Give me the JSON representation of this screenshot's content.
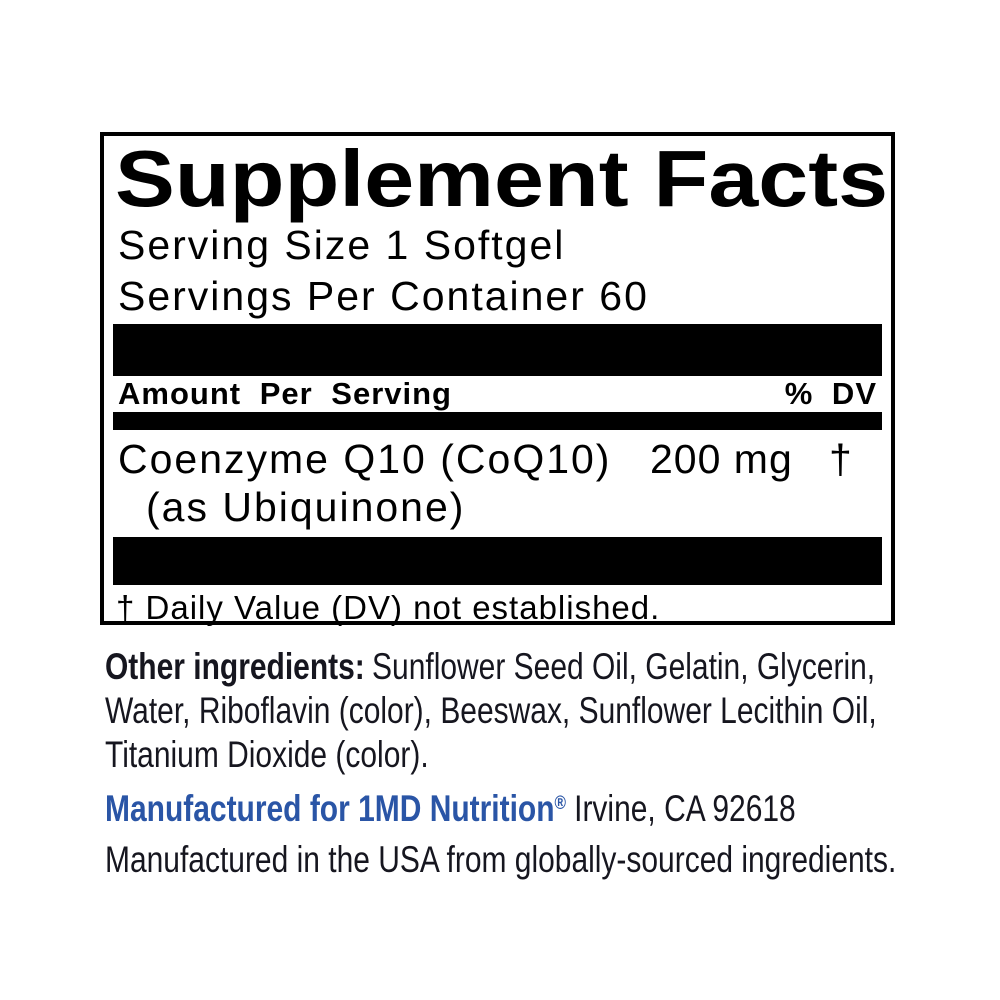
{
  "colors": {
    "accent_blue": "#2a55a6",
    "text_dark": "#16161f",
    "panel_black": "#000000"
  },
  "panel": {
    "title": "Supplement Facts",
    "serving_size": "Serving Size 1 Softgel",
    "servings_per_container": "Servings Per Container 60",
    "columns": {
      "amount": "Amount Per Serving",
      "dv": "% DV"
    },
    "rows": [
      {
        "name": "Coenzyme Q10 (CoQ10)",
        "detail": "(as Ubiquinone)",
        "amount": "200 mg",
        "dv": "†"
      }
    ],
    "footnote": "† Daily Value (DV) not established."
  },
  "other_ingredients": {
    "label": "Other ingredients:",
    "line1": "Sunflower Seed Oil, Gelatin, Glycerin,",
    "line2": "Water, Riboflavin (color), Beeswax, Sunflower Lecithin Oil,",
    "line3": "Titanium Dioxide (color)."
  },
  "manufacturer": {
    "brand": "Manufactured for 1MD Nutrition",
    "registered_mark": "®",
    "location": "Irvine, CA 92618",
    "origin": "Manufactured in the USA from globally-sourced ingredients."
  }
}
